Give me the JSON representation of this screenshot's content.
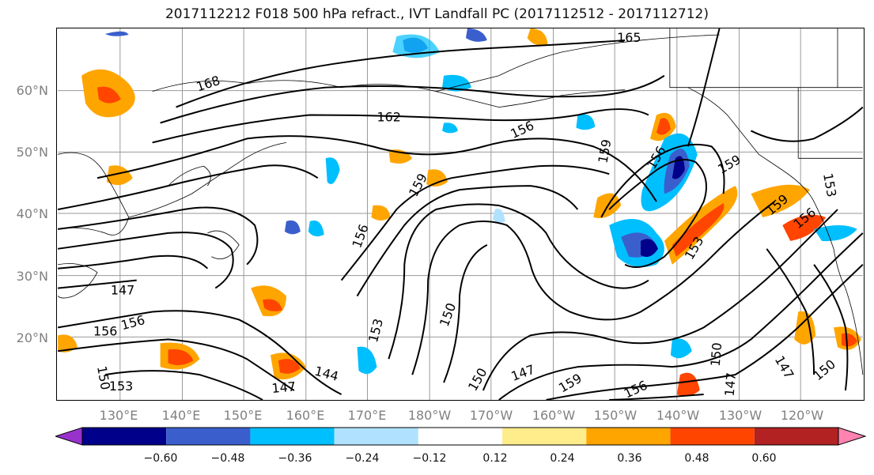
{
  "title": "2017112212 F018 500 hPa refract., IVT Landfall PC (2017112512 - 2017112712)",
  "map": {
    "lat_labels": [
      "60°N",
      "50°N",
      "40°N",
      "30°N",
      "20°N"
    ],
    "lon_labels": [
      "130°E",
      "140°E",
      "150°E",
      "160°E",
      "170°E",
      "180°W",
      "170°W",
      "160°W",
      "150°W",
      "140°W",
      "130°W",
      "120°W"
    ],
    "contour_labels": [
      "165",
      "168",
      "162",
      "156",
      "159",
      "156",
      "159",
      "159",
      "156",
      "153",
      "159",
      "153",
      "156",
      "147",
      "156",
      "156",
      "150",
      "153",
      "144",
      "147",
      "150",
      "147",
      "159",
      "156",
      "150",
      "147",
      "147",
      "150",
      "150",
      "153"
    ]
  },
  "colorbar": {
    "colors": [
      "#9932cc",
      "#00008b",
      "#3a5fcd",
      "#00bfff",
      "#b0e2ff",
      "#ffffff",
      "#ffec8b",
      "#ffa500",
      "#ff4500",
      "#b22222",
      "#ff83b0"
    ],
    "tick_labels": [
      "−0.60",
      "−0.48",
      "−0.36",
      "−0.24",
      "−0.12",
      "0.12",
      "0.24",
      "0.36",
      "0.48",
      "0.60"
    ]
  }
}
